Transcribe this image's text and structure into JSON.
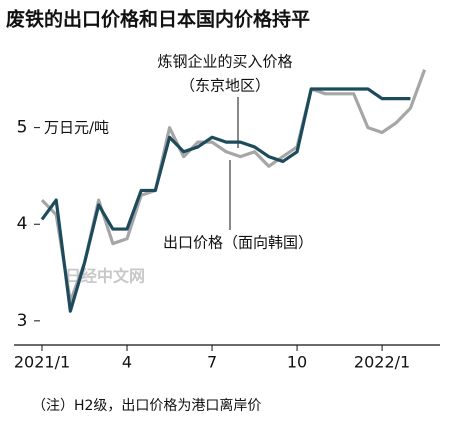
{
  "chart_data": {
    "type": "line",
    "title": "废铁的出口价格和日本国内价格持平",
    "y_label": "万日元/吨",
    "annotations": [
      "炼钢企业的买入价格",
      "（东京地区）",
      "出口价格（面向韩国）"
    ],
    "note": "（注）H2级，出口价格为港口离岸价",
    "watermark": "日经中文网",
    "categories": [
      "2021/1",
      null,
      null,
      null,
      null,
      null,
      "4",
      null,
      null,
      null,
      null,
      null,
      "7",
      null,
      null,
      null,
      null,
      null,
      "10",
      null,
      null,
      null,
      null,
      null,
      "2022/1",
      null,
      null,
      null
    ],
    "series": [
      {
        "name": "炼钢企业的买入价格（东京地区）",
        "color": "#1d4b5c",
        "values": [
          4.05,
          4.25,
          3.1,
          3.6,
          4.2,
          3.95,
          3.95,
          4.35,
          4.35,
          4.9,
          4.75,
          4.8,
          4.9,
          4.85,
          4.85,
          4.8,
          4.7,
          4.65,
          4.75,
          5.4,
          5.4,
          5.4,
          5.4,
          5.4,
          5.3,
          5.3,
          5.3,
          null
        ]
      },
      {
        "name": "出口价格（面向韩国）",
        "color": "#a6a6a6",
        "values": [
          4.25,
          4.1,
          3.2,
          3.6,
          4.25,
          3.8,
          3.85,
          4.3,
          4.35,
          5.0,
          4.7,
          4.85,
          4.85,
          4.75,
          4.7,
          4.75,
          4.6,
          4.7,
          4.8,
          5.4,
          5.35,
          5.35,
          5.35,
          5.0,
          4.95,
          5.05,
          5.2,
          5.6
        ]
      }
    ],
    "ylim": [
      2.75,
      5.7
    ],
    "yticks": [
      3,
      4,
      5
    ]
  }
}
